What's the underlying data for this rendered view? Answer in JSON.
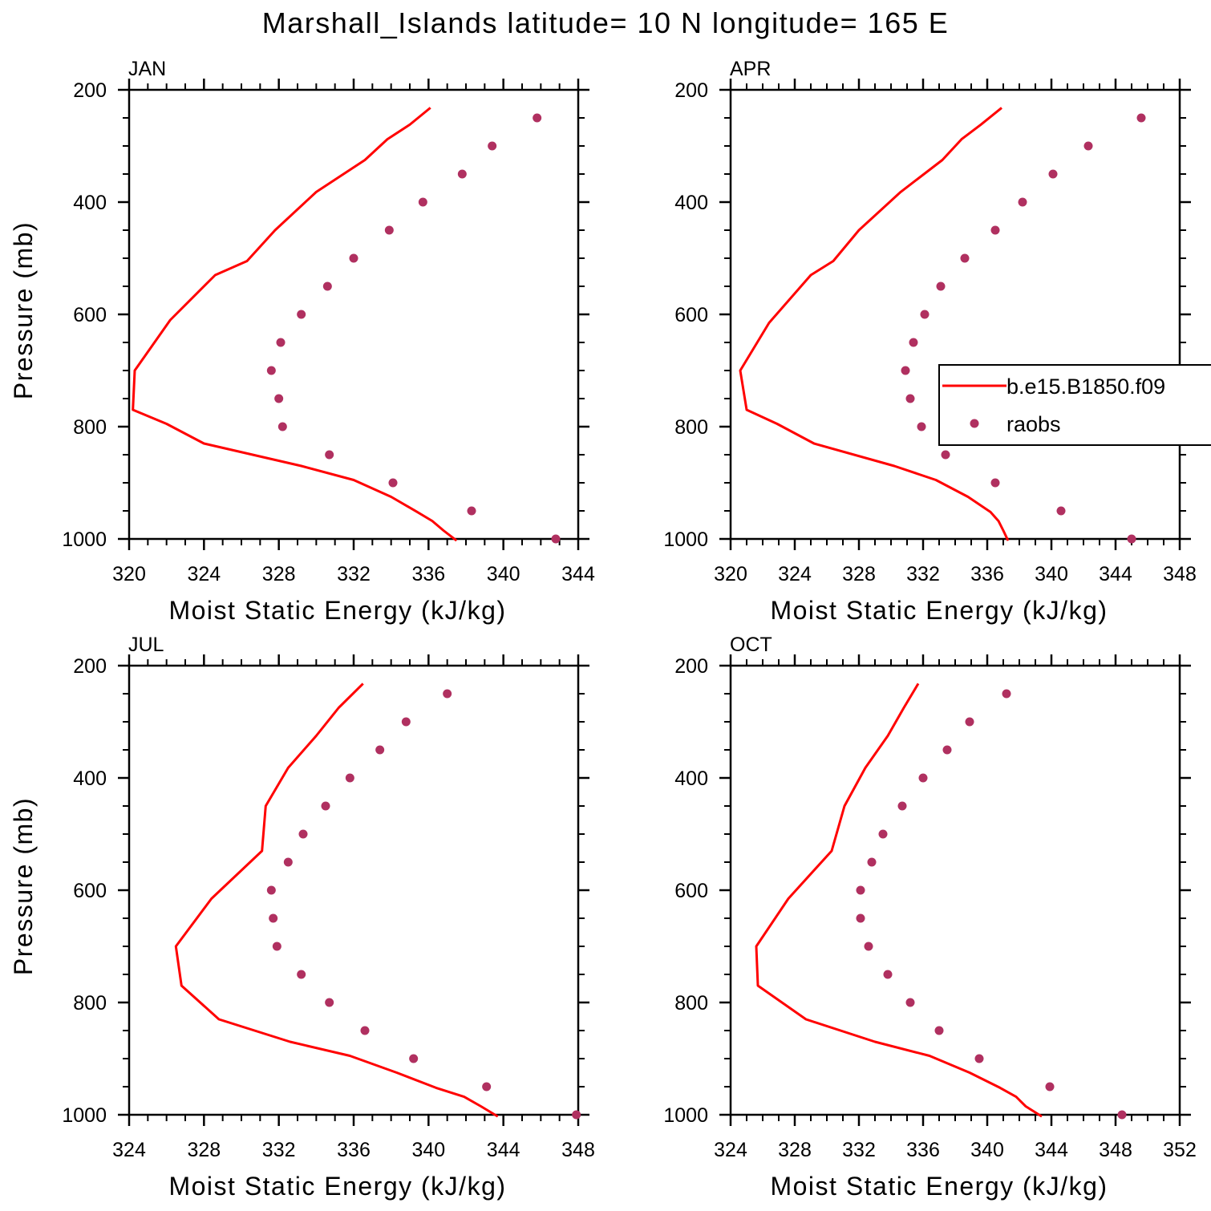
{
  "title": "Marshall_Islands  latitude= 10 N longitude= 165 E",
  "colors": {
    "model": "#ff0000",
    "obs": "#b03060",
    "frame": "#000000"
  },
  "legend": {
    "model_label": "b.e15.B1850.f09",
    "obs_label": "raobs",
    "placement": "right"
  },
  "chart_data": [
    {
      "type": "line+scatter",
      "panel": "JAN",
      "xlabel": "Moist Static Energy (kJ/kg)",
      "ylabel": "Pressure (mb)",
      "xlim": [
        320,
        344
      ],
      "ylim": [
        200,
        1000
      ],
      "xticks": [
        "320",
        "324",
        "328",
        "332",
        "336",
        "340",
        "344"
      ],
      "yticks": [
        "200",
        "400",
        "600",
        "800",
        "1000"
      ],
      "series": [
        {
          "name": "b.e15.B1850.f09",
          "style": "line",
          "points": [
            [
              336.1,
              232
            ],
            [
              335.0,
              262
            ],
            [
              333.8,
              288
            ],
            [
              332.6,
              325
            ],
            [
              330.0,
              382
            ],
            [
              327.8,
              450
            ],
            [
              326.3,
              505
            ],
            [
              324.6,
              530
            ],
            [
              322.2,
              610
            ],
            [
              320.3,
              700
            ],
            [
              320.2,
              770
            ],
            [
              322.0,
              795
            ],
            [
              324.0,
              830
            ],
            [
              329.2,
              870
            ],
            [
              332.0,
              895
            ],
            [
              334.0,
              925
            ],
            [
              335.4,
              952
            ],
            [
              336.2,
              968
            ],
            [
              336.8,
              985
            ],
            [
              337.5,
              1003
            ]
          ]
        },
        {
          "name": "raobs",
          "style": "dots",
          "points": [
            [
              341.8,
              250
            ],
            [
              339.4,
              300
            ],
            [
              337.8,
              350
            ],
            [
              335.7,
              400
            ],
            [
              333.9,
              450
            ],
            [
              332.0,
              500
            ],
            [
              330.6,
              550
            ],
            [
              329.2,
              600
            ],
            [
              328.1,
              650
            ],
            [
              327.6,
              700
            ],
            [
              328.0,
              750
            ],
            [
              328.2,
              800
            ],
            [
              330.7,
              850
            ],
            [
              334.1,
              900
            ],
            [
              338.3,
              950
            ],
            [
              342.8,
              1000
            ]
          ]
        }
      ]
    },
    {
      "type": "line+scatter",
      "panel": "APR",
      "xlabel": "Moist Static Energy (kJ/kg)",
      "ylabel": "",
      "xlim": [
        320,
        348
      ],
      "ylim": [
        200,
        1000
      ],
      "xticks": [
        "320",
        "324",
        "328",
        "332",
        "336",
        "340",
        "344",
        "348"
      ],
      "yticks": [
        "200",
        "400",
        "600",
        "800",
        "1000"
      ],
      "series": [
        {
          "name": "b.e15.B1850.f09",
          "style": "line",
          "points": [
            [
              336.9,
              232
            ],
            [
              335.6,
              262
            ],
            [
              334.4,
              288
            ],
            [
              333.2,
              325
            ],
            [
              330.6,
              382
            ],
            [
              328.0,
              450
            ],
            [
              326.4,
              505
            ],
            [
              325.0,
              530
            ],
            [
              322.4,
              615
            ],
            [
              320.6,
              700
            ],
            [
              321.0,
              770
            ],
            [
              322.9,
              795
            ],
            [
              325.2,
              830
            ],
            [
              330.2,
              870
            ],
            [
              332.8,
              895
            ],
            [
              334.8,
              925
            ],
            [
              336.2,
              952
            ],
            [
              336.7,
              968
            ],
            [
              337.0,
              985
            ],
            [
              337.3,
              1003
            ]
          ]
        },
        {
          "name": "raobs",
          "style": "dots",
          "points": [
            [
              345.6,
              250
            ],
            [
              342.3,
              300
            ],
            [
              340.1,
              350
            ],
            [
              338.2,
              400
            ],
            [
              336.5,
              450
            ],
            [
              334.6,
              500
            ],
            [
              333.1,
              550
            ],
            [
              332.1,
              600
            ],
            [
              331.4,
              650
            ],
            [
              330.9,
              700
            ],
            [
              331.2,
              750
            ],
            [
              331.9,
              800
            ],
            [
              333.4,
              850
            ],
            [
              336.5,
              900
            ],
            [
              340.6,
              950
            ],
            [
              345.0,
              1000
            ]
          ]
        }
      ]
    },
    {
      "type": "line+scatter",
      "panel": "JUL",
      "xlabel": "Moist Static Energy (kJ/kg)",
      "ylabel": "Pressure (mb)",
      "xlim": [
        324,
        348
      ],
      "ylim": [
        200,
        1000
      ],
      "xticks": [
        "324",
        "328",
        "332",
        "336",
        "340",
        "344",
        "348"
      ],
      "yticks": [
        "200",
        "400",
        "600",
        "800",
        "1000"
      ],
      "series": [
        {
          "name": "b.e15.B1850.f09",
          "style": "line",
          "points": [
            [
              336.5,
              232
            ],
            [
              335.2,
              275
            ],
            [
              334.0,
              325
            ],
            [
              332.5,
              382
            ],
            [
              331.3,
              450
            ],
            [
              331.1,
              530
            ],
            [
              328.4,
              615
            ],
            [
              326.5,
              700
            ],
            [
              326.8,
              770
            ],
            [
              328.8,
              830
            ],
            [
              332.6,
              870
            ],
            [
              335.8,
              895
            ],
            [
              338.3,
              925
            ],
            [
              340.4,
              952
            ],
            [
              341.9,
              968
            ],
            [
              342.8,
              985
            ],
            [
              343.7,
              1003
            ]
          ]
        },
        {
          "name": "raobs",
          "style": "dots",
          "points": [
            [
              341.0,
              250
            ],
            [
              338.8,
              300
            ],
            [
              337.4,
              350
            ],
            [
              335.8,
              400
            ],
            [
              334.5,
              450
            ],
            [
              333.3,
              500
            ],
            [
              332.5,
              550
            ],
            [
              331.6,
              600
            ],
            [
              331.7,
              650
            ],
            [
              331.9,
              700
            ],
            [
              333.2,
              750
            ],
            [
              334.7,
              800
            ],
            [
              336.6,
              850
            ],
            [
              339.2,
              900
            ],
            [
              343.1,
              950
            ],
            [
              347.9,
              1000
            ]
          ]
        }
      ]
    },
    {
      "type": "line+scatter",
      "panel": "OCT",
      "xlabel": "Moist Static Energy (kJ/kg)",
      "ylabel": "",
      "xlim": [
        324,
        352
      ],
      "ylim": [
        200,
        1000
      ],
      "xticks": [
        "324",
        "328",
        "332",
        "336",
        "340",
        "344",
        "348",
        "352"
      ],
      "yticks": [
        "200",
        "400",
        "600",
        "800",
        "1000"
      ],
      "series": [
        {
          "name": "b.e15.B1850.f09",
          "style": "line",
          "points": [
            [
              335.7,
              232
            ],
            [
              334.8,
              275
            ],
            [
              333.8,
              325
            ],
            [
              332.4,
              382
            ],
            [
              331.1,
              450
            ],
            [
              330.3,
              530
            ],
            [
              327.6,
              615
            ],
            [
              325.6,
              700
            ],
            [
              325.7,
              770
            ],
            [
              328.7,
              830
            ],
            [
              333.0,
              870
            ],
            [
              336.4,
              895
            ],
            [
              338.9,
              925
            ],
            [
              340.8,
              952
            ],
            [
              341.8,
              968
            ],
            [
              342.4,
              985
            ],
            [
              343.4,
              1003
            ]
          ]
        },
        {
          "name": "raobs",
          "style": "dots",
          "points": [
            [
              341.2,
              250
            ],
            [
              338.9,
              300
            ],
            [
              337.5,
              350
            ],
            [
              336.0,
              400
            ],
            [
              334.7,
              450
            ],
            [
              333.5,
              500
            ],
            [
              332.8,
              550
            ],
            [
              332.1,
              600
            ],
            [
              332.1,
              650
            ],
            [
              332.6,
              700
            ],
            [
              333.8,
              750
            ],
            [
              335.2,
              800
            ],
            [
              337.0,
              850
            ],
            [
              339.5,
              900
            ],
            [
              343.9,
              950
            ],
            [
              348.4,
              1000
            ]
          ]
        }
      ]
    }
  ]
}
